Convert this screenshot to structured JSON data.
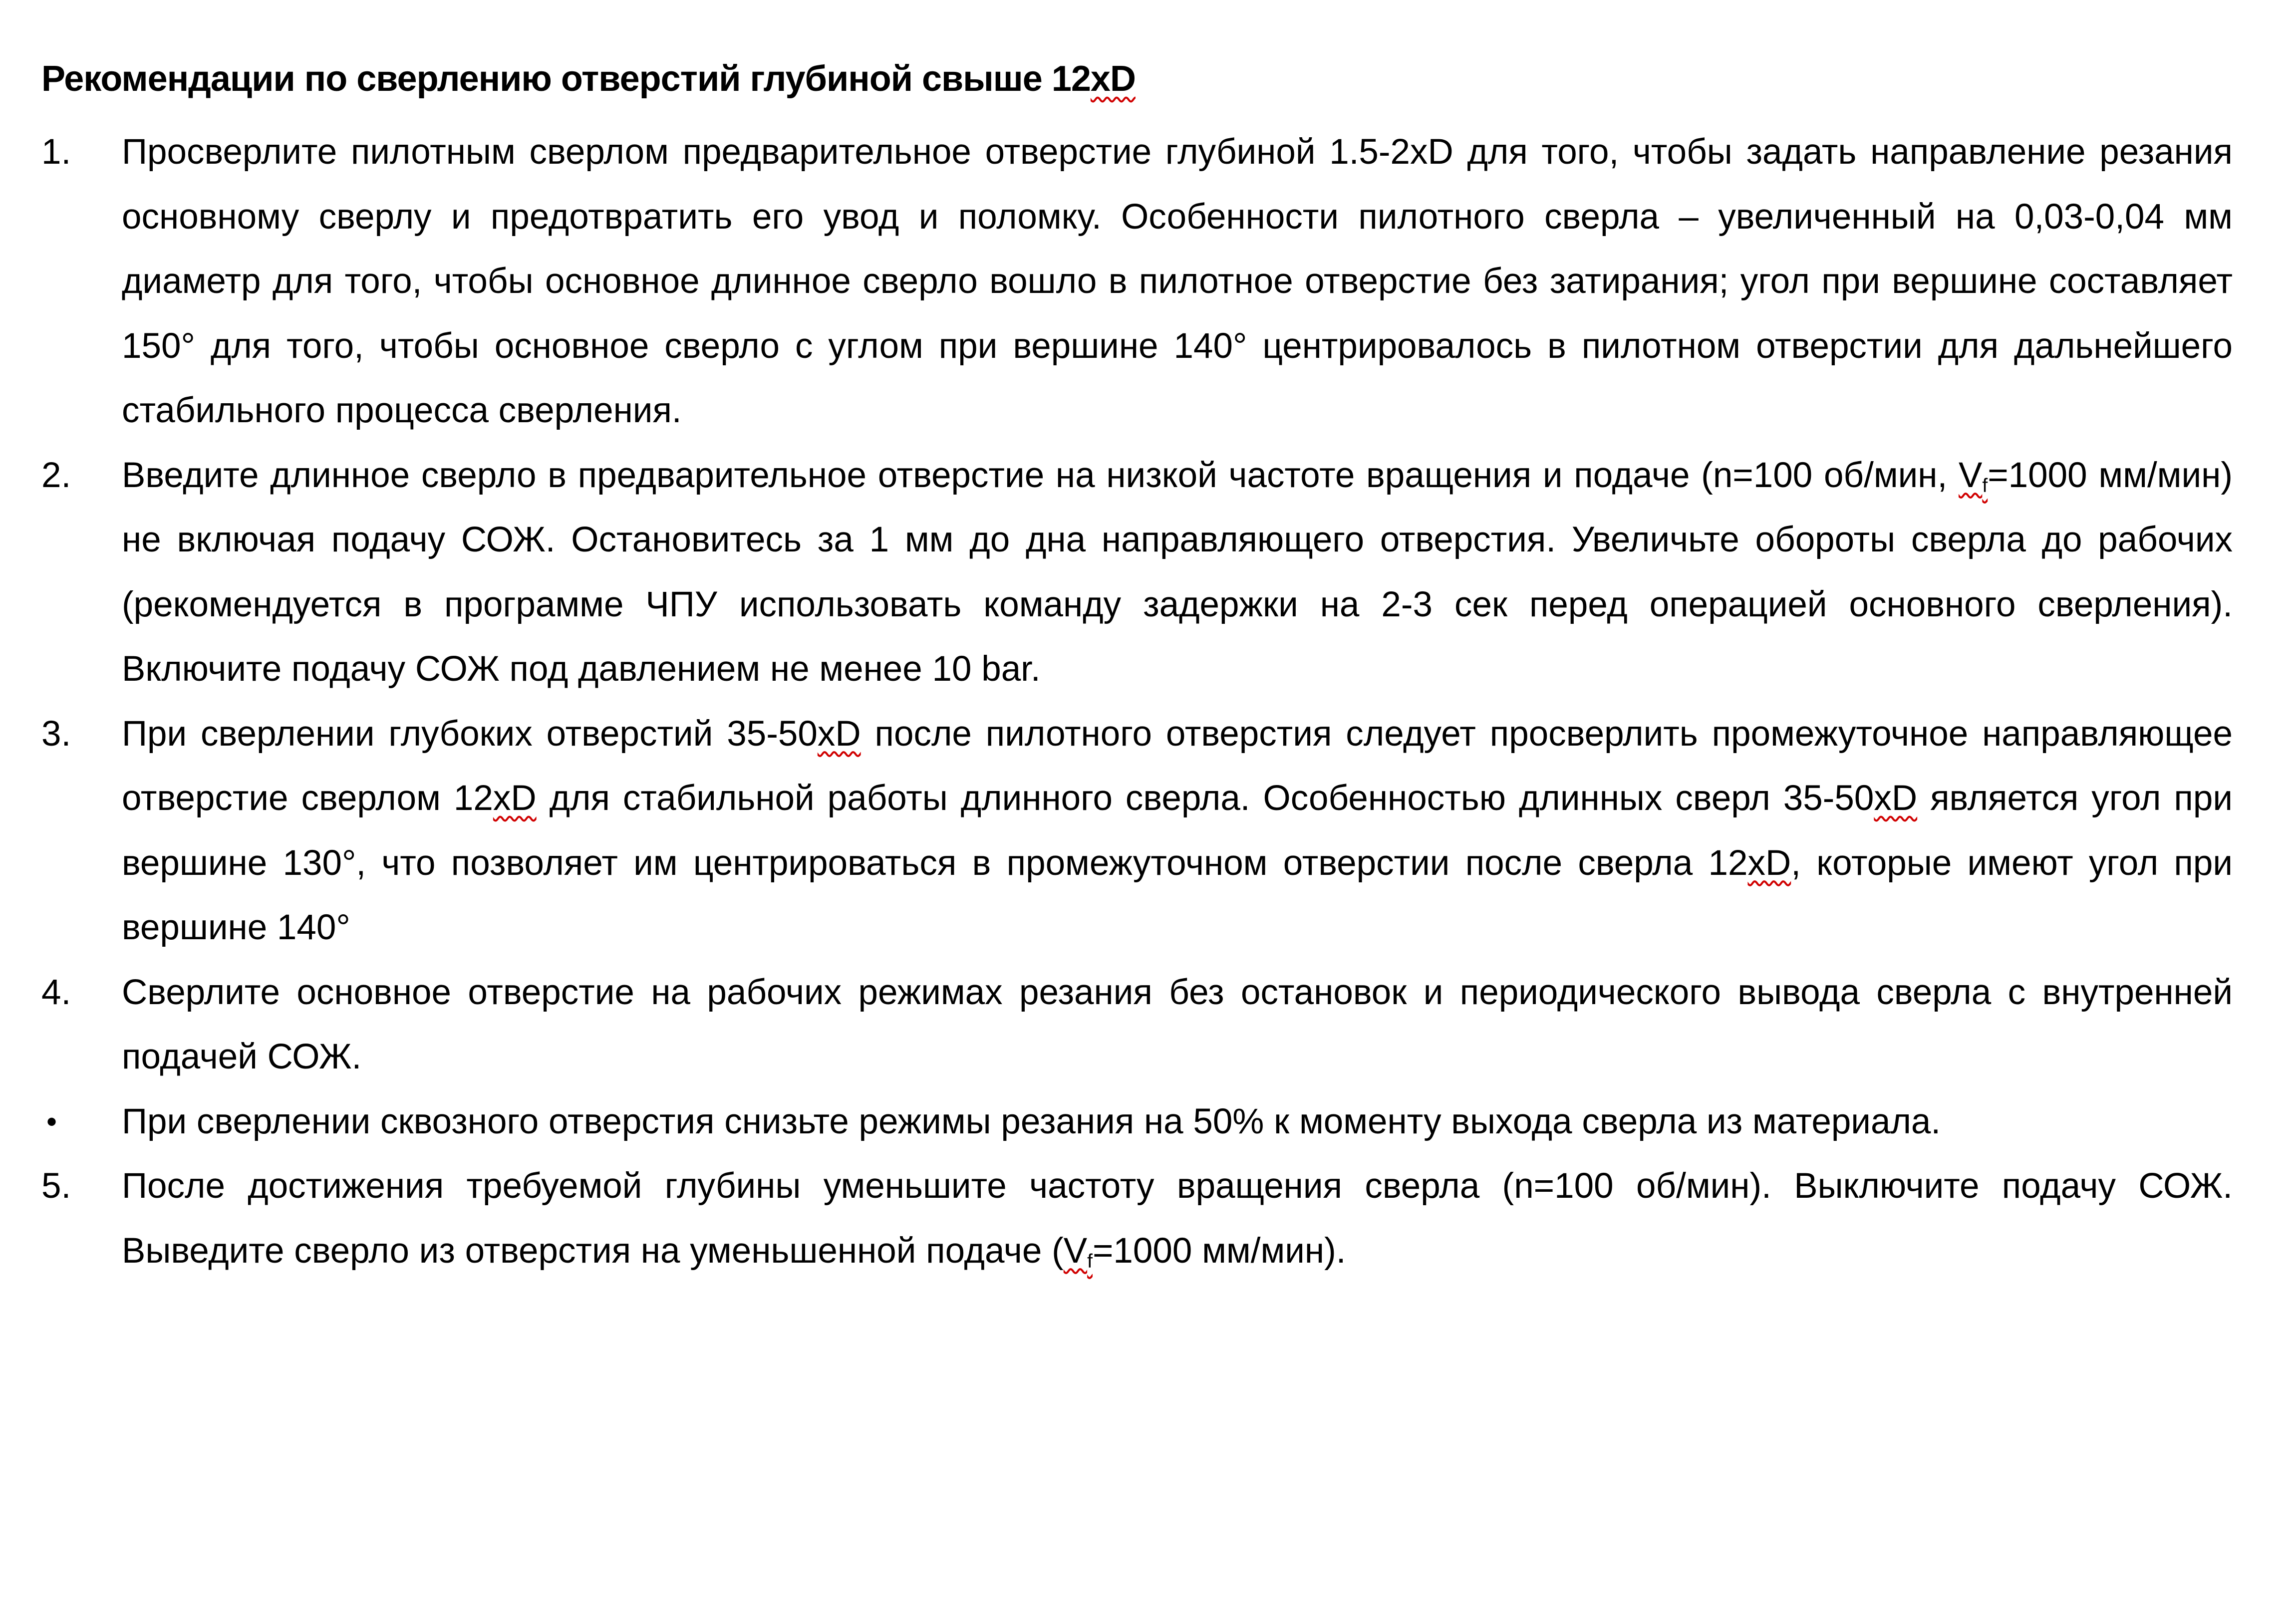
{
  "title": {
    "parts": [
      {
        "t": "Рекомендации по сверлению отверстий глубиной свыше 12"
      },
      {
        "t": "xD",
        "spell": true
      }
    ]
  },
  "items": [
    {
      "marker": "1.",
      "parts": [
        {
          "t": "Просверлите пилотным сверлом предварительное отверстие глубиной 1.5-2xD для того, чтобы задать направление резания основному сверлу и предотвратить его увод и поломку. Особенности пилотного сверла – увеличенный на 0,03-0,04 мм диаметр для того, чтобы основное длинное сверло вошло в пилотное отверстие без затирания; угол при вершине составляет 150° для того, чтобы основное сверло с углом при вершине 140° центрировалось в пилотном отверстии для дальнейшего стабильного процесса сверления."
        }
      ]
    },
    {
      "marker": "2.",
      "parts": [
        {
          "t": "Введите длинное сверло в предварительное отверстие на низкой частоте вращения и подаче (n=100 об/мин, "
        },
        {
          "t": "V",
          "spell": true
        },
        {
          "t": "f",
          "sub": true,
          "spell": true
        },
        {
          "t": "=1000 мм/мин) не включая подачу СОЖ. Остановитесь за 1 мм до дна направляющего отверстия. Увеличьте обороты сверла до рабочих (рекомендуется в программе ЧПУ использовать команду задержки на 2-3 сек перед операцией основного сверления). Включите подачу СОЖ под давлением не менее 10 bar."
        }
      ]
    },
    {
      "marker": "3.",
      "parts": [
        {
          "t": "При сверлении глубоких отверстий 35-50"
        },
        {
          "t": "xD",
          "spell": true
        },
        {
          "t": " после пилотного отверстия следует просверлить промежуточное направляющее отверстие сверлом 12"
        },
        {
          "t": "xD",
          "spell": true
        },
        {
          "t": " для стабильной работы длинного сверла. Особенностью длинных сверл 35-50"
        },
        {
          "t": "xD",
          "spell": true
        },
        {
          "t": " является угол при вершине 130°, что позволяет им центрироваться в промежуточном отверстии после сверла 12"
        },
        {
          "t": "xD",
          "spell": true
        },
        {
          "t": ", которые имеют угол при вершине 140°"
        }
      ]
    },
    {
      "marker": "4.",
      "parts": [
        {
          "t": "Сверлите основное отверстие на рабочих режимах резания без остановок и периодического вывода сверла с внутренней подачей СОЖ."
        }
      ]
    },
    {
      "marker": "•",
      "bullet": true,
      "parts": [
        {
          "t": "При сверлении сквозного отверстия снизьте режимы резания на 50% к моменту выхода сверла из материала."
        }
      ]
    },
    {
      "marker": "5.",
      "parts": [
        {
          "t": "После достижения требуемой глубины уменьшите частоту вращения сверла (n=100 об/мин). Выключите подачу СОЖ. Выведите сверло из отверстия на уменьшенной подаче ("
        },
        {
          "t": "V",
          "spell": true
        },
        {
          "t": "f",
          "sub": true,
          "spell": true
        },
        {
          "t": "=1000 мм/мин)."
        }
      ]
    }
  ]
}
